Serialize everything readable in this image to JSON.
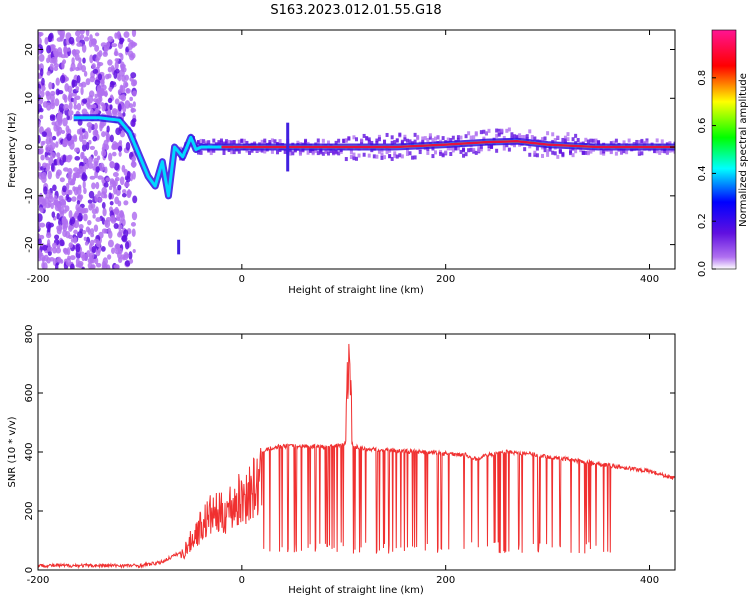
{
  "title": "S163.2023.012.01.55.G18",
  "colors": {
    "snr_line": "#f03030",
    "ridge_core": "#e8123c",
    "axis": "#000000"
  },
  "chart_data": [
    {
      "type": "heatmap",
      "xlabel": "Height of straight line (km)",
      "ylabel": "Frequency (Hz)",
      "xlim": [
        -200,
        425
      ],
      "ylim": [
        -25,
        24
      ],
      "xticks": [
        -200,
        0,
        200,
        400
      ],
      "yticks": [
        -20,
        -10,
        0,
        10,
        20
      ],
      "colorbar": {
        "label": "Normalized spectral amplitude",
        "range": [
          0,
          1
        ],
        "ticks": [
          0.0,
          0.2,
          0.4,
          0.6,
          0.8
        ],
        "colormap": [
          "#ffffff",
          "#8a2be2",
          "#0000ff",
          "#00ffff",
          "#00ff00",
          "#ffff00",
          "#ff0000",
          "#ff1493"
        ]
      },
      "ridge": {
        "x": [
          -165,
          -140,
          -120,
          -110,
          -100,
          -92,
          -85,
          -78,
          -72,
          -66,
          -62,
          -58,
          -50,
          -45,
          -40,
          -30,
          -20,
          0,
          50,
          100,
          150,
          200,
          240,
          270,
          300,
          350,
          400,
          425
        ],
        "freq": [
          6,
          6,
          5.5,
          3,
          -2,
          -6,
          -8,
          -3,
          -10,
          0,
          -1,
          -2,
          2,
          -0.5,
          0,
          0,
          0,
          0,
          0,
          0,
          0,
          0.5,
          1,
          1.2,
          0.5,
          0,
          0,
          0
        ]
      },
      "spikes": [
        {
          "x": 45,
          "fmin": -5,
          "fmax": 5
        },
        {
          "x": -62,
          "fmin": -22,
          "fmax": -19
        }
      ]
    },
    {
      "type": "line",
      "xlabel": "Height of straight line (km)",
      "ylabel": "SNR (10 * v/v)",
      "xlim": [
        -200,
        425
      ],
      "ylim": [
        0,
        800
      ],
      "xticks": [
        -200,
        0,
        200,
        400
      ],
      "yticks": [
        0,
        200,
        400,
        600,
        800
      ],
      "envelope": {
        "x": [
          -200,
          -150,
          -100,
          -80,
          -60,
          -50,
          -40,
          -30,
          -20,
          -10,
          0,
          10,
          20,
          30,
          40,
          60,
          80,
          100,
          105,
          110,
          120,
          150,
          200,
          220,
          230,
          240,
          260,
          280,
          300,
          330,
          350,
          380,
          400,
          425
        ],
        "snr": [
          15,
          15,
          15,
          25,
          60,
          130,
          200,
          250,
          250,
          290,
          320,
          360,
          400,
          415,
          420,
          420,
          418,
          425,
          440,
          420,
          410,
          405,
          395,
          390,
          375,
          390,
          400,
          395,
          385,
          370,
          360,
          345,
          335,
          310
        ]
      },
      "peak": {
        "x": 105,
        "snr": 800
      },
      "dropout_floor": 55
    }
  ]
}
